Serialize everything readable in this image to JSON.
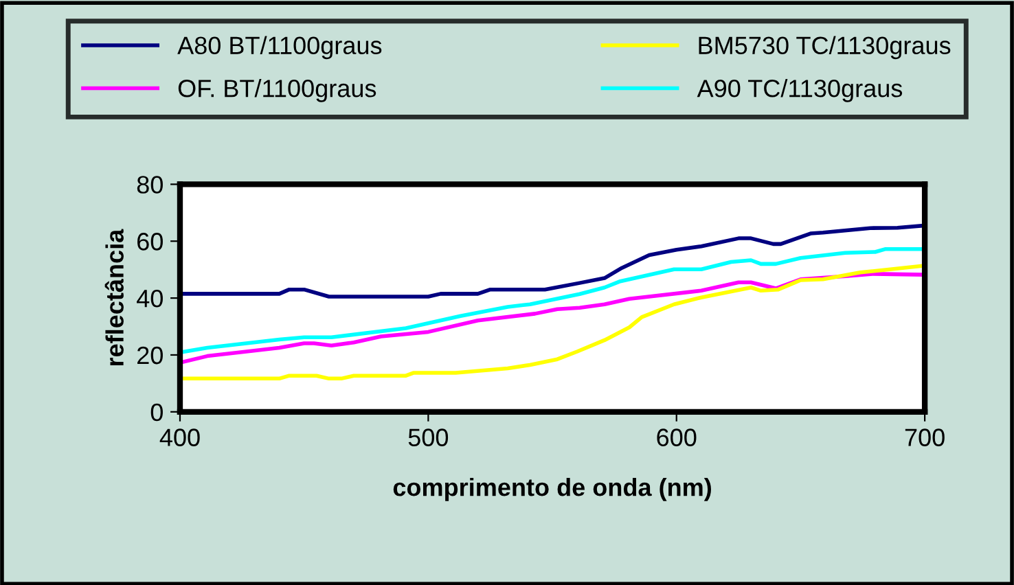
{
  "chart_data": {
    "type": "line",
    "xlabel": "comprimento de onda (nm)",
    "ylabel": "reflectância",
    "xlim": [
      400,
      700
    ],
    "xticks": [
      400,
      500,
      600,
      700
    ],
    "ylim": [
      0,
      80
    ],
    "yticks": [
      0,
      20,
      40,
      60,
      80
    ],
    "grid": false,
    "legend": "top",
    "marker": "none",
    "line_style": "solid",
    "series": [
      {
        "name": "A80 BT/1100graus",
        "color": "#000080",
        "x": [
          400,
          440,
          444,
          450,
          460,
          500,
          505,
          520,
          525,
          547,
          561,
          571,
          578,
          589,
          600,
          610,
          625,
          630,
          639,
          642,
          654,
          659,
          678,
          689,
          700
        ],
        "values": [
          41.5,
          41.5,
          43,
          43,
          40.5,
          40.5,
          41.5,
          41.5,
          43,
          43,
          45.3,
          47,
          50.6,
          55.1,
          57,
          58.2,
          61,
          61,
          59,
          59,
          62.7,
          63,
          64.6,
          64.7,
          65.5
        ]
      },
      {
        "name": "OF. BT/1100graus",
        "color": "#ff00ff",
        "x": [
          400,
          411,
          440,
          450,
          454,
          461,
          470,
          481,
          500,
          520,
          543,
          552,
          561,
          571,
          581,
          610,
          625,
          630,
          640,
          650,
          668,
          679,
          700
        ],
        "values": [
          17.3,
          19.6,
          22.5,
          24.1,
          24.1,
          23.3,
          24.4,
          26.5,
          28.1,
          32.1,
          34.5,
          36.1,
          36.6,
          37.8,
          39.7,
          42.6,
          45.5,
          45.5,
          43.4,
          46.6,
          47.7,
          48.5,
          48.2
        ]
      },
      {
        "name": "BM5730 TC/1130graus",
        "color": "#ffff00",
        "x": [
          400,
          440,
          444,
          455,
          460,
          465,
          470,
          491,
          494,
          511,
          532,
          541,
          552,
          560,
          571,
          581,
          586,
          599,
          610,
          630,
          634,
          641,
          650,
          659,
          674,
          700
        ],
        "values": [
          11.7,
          11.7,
          12.7,
          12.7,
          11.7,
          11.7,
          12.7,
          12.7,
          13.7,
          13.7,
          15.3,
          16.5,
          18.5,
          21.2,
          25.2,
          29.7,
          33.3,
          37.8,
          40.2,
          43.7,
          42.6,
          43,
          46.3,
          46.6,
          49,
          51.4
        ]
      },
      {
        "name": "A90 TC/1130graus",
        "color": "#00ffff",
        "x": [
          400,
          411,
          440,
          450,
          461,
          491,
          513,
          532,
          541,
          561,
          571,
          577,
          599,
          610,
          622,
          630,
          634,
          640,
          650,
          668,
          680,
          684,
          700
        ],
        "values": [
          20.9,
          22.5,
          25.4,
          26.2,
          26.2,
          29.4,
          33.7,
          36.9,
          37.8,
          41.4,
          43.7,
          45.8,
          50.1,
          50.1,
          52.7,
          53.3,
          52,
          52,
          54.1,
          55.9,
          56.2,
          57.2,
          57.2
        ]
      }
    ]
  }
}
